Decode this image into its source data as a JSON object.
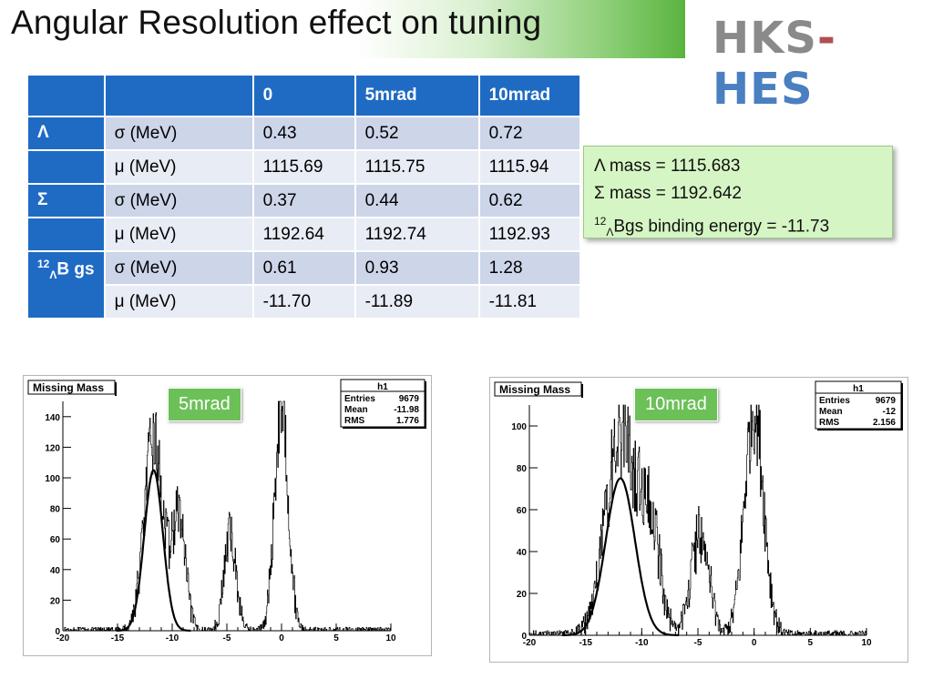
{
  "title": "Angular Resolution effect on tuning",
  "logo": {
    "h": "HKS",
    "dash": "-",
    "rest": "HES"
  },
  "table": {
    "header": [
      "",
      "",
      "0",
      "5mrad",
      "10mrad"
    ],
    "groups": [
      {
        "label": "Λ",
        "label_sup": "",
        "label_sub": "",
        "label_tail": "",
        "rows": [
          {
            "param": "σ (MeV)",
            "values": [
              "0.43",
              "0.52",
              "0.72"
            ]
          },
          {
            "param": "μ (MeV)",
            "values": [
              "1115.69",
              "1115.75",
              "1115.94"
            ]
          }
        ]
      },
      {
        "label": "Σ",
        "label_sup": "",
        "label_sub": "",
        "label_tail": "",
        "rows": [
          {
            "param": "σ (MeV)",
            "values": [
              "0.37",
              "0.44",
              "0.62"
            ]
          },
          {
            "param": "μ (MeV)",
            "values": [
              "1192.64",
              "1192.74",
              "1192.93"
            ]
          }
        ]
      },
      {
        "label": "",
        "label_sup": "12",
        "label_sub": "Λ",
        "label_tail": "B gs",
        "rows": [
          {
            "param": "σ (MeV)",
            "values": [
              "0.61",
              "0.93",
              "1.28"
            ]
          },
          {
            "param": "μ (MeV)",
            "values": [
              "-11.70",
              "-11.89",
              "-11.81"
            ]
          }
        ]
      }
    ]
  },
  "info": {
    "line1": "Λ mass = 1115.683",
    "line2": "Σ mass = 1192.642",
    "line3_sup": "12",
    "line3_sub": "Λ",
    "line3_text": "Bgs binding energy = -11.73"
  },
  "chart_data": [
    {
      "type": "line",
      "title": "Missing Mass",
      "badge": "5mrad",
      "stats": {
        "name": "h1",
        "rows": [
          [
            "Entries",
            "9679"
          ],
          [
            "Mean",
            "-11.98"
          ],
          [
            "RMS",
            "1.776"
          ]
        ]
      },
      "xlim": [
        -20,
        10
      ],
      "ylim": [
        0,
        150
      ],
      "xticks": [
        -20,
        -15,
        -10,
        -5,
        0,
        5,
        10
      ],
      "yticks": [
        0,
        20,
        40,
        60,
        80,
        100,
        120,
        140
      ],
      "peaks": [
        {
          "mu": -11.7,
          "sigma": 0.85,
          "height": 125,
          "fit_height": 105
        },
        {
          "mu": -9.4,
          "sigma": 0.6,
          "height": 74,
          "fit_height": 0
        },
        {
          "mu": -4.7,
          "sigma": 0.55,
          "height": 62,
          "fit_height": 0
        },
        {
          "mu": 0.0,
          "sigma": 0.62,
          "height": 148,
          "fit_height": 0
        }
      ]
    },
    {
      "type": "line",
      "title": "Missing Mass",
      "badge": "10mrad",
      "stats": {
        "name": "h1",
        "rows": [
          [
            "Entries",
            "9679"
          ],
          [
            "Mean",
            "-12"
          ],
          [
            "RMS",
            "2.156"
          ]
        ]
      },
      "xlim": [
        -20,
        10
      ],
      "ylim": [
        0,
        110
      ],
      "xticks": [
        -20,
        -15,
        -10,
        -5,
        0,
        5,
        10
      ],
      "yticks": [
        0,
        20,
        40,
        60,
        80,
        100
      ],
      "peaks": [
        {
          "mu": -11.9,
          "sigma": 1.3,
          "height": 95,
          "fit_height": 75
        },
        {
          "mu": -9.3,
          "sigma": 0.9,
          "height": 52,
          "fit_height": 0
        },
        {
          "mu": -4.8,
          "sigma": 0.8,
          "height": 48,
          "fit_height": 0
        },
        {
          "mu": 0.0,
          "sigma": 0.85,
          "height": 108,
          "fit_height": 0
        }
      ]
    }
  ]
}
